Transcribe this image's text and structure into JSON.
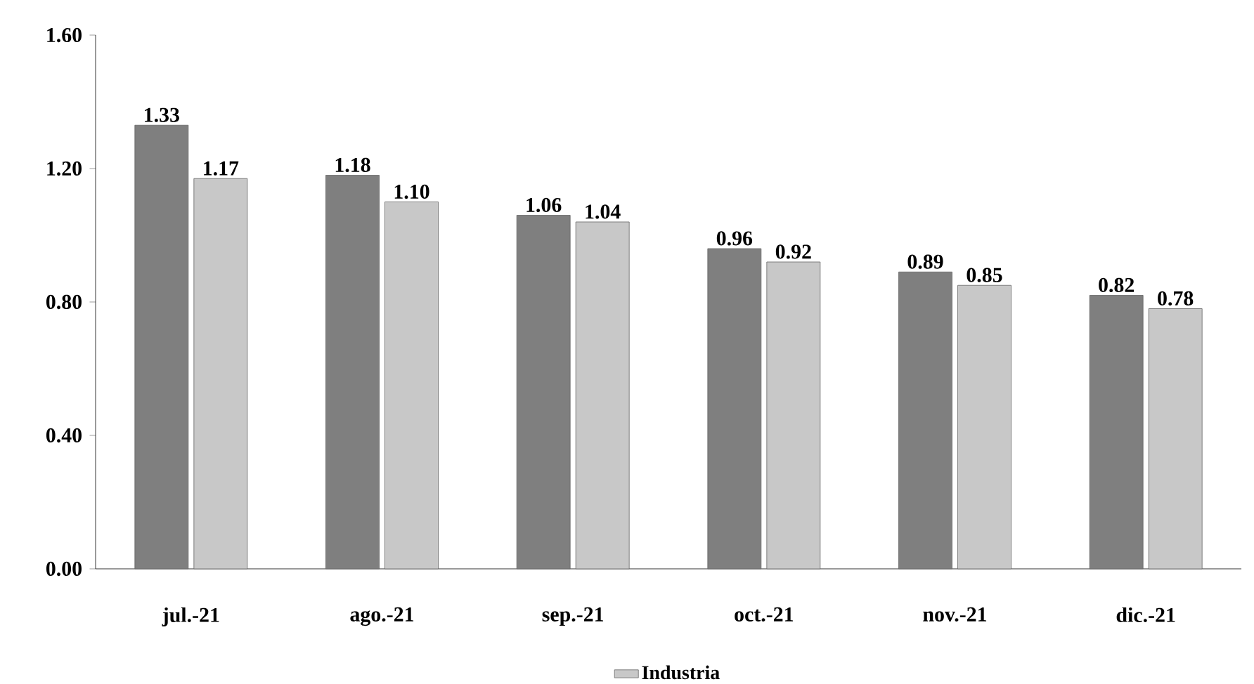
{
  "chart_data": {
    "type": "bar",
    "categories": [
      "jul.-21",
      "ago.-21",
      "sep.-21",
      "oct.-21",
      "nov.-21",
      "dic.-21"
    ],
    "series": [
      {
        "color": "#7f7f7f",
        "values": [
          1.33,
          1.18,
          1.06,
          0.96,
          0.89,
          0.82
        ],
        "value_labels": [
          "1.33",
          "1.18",
          "1.06",
          "0.96",
          "0.89",
          "0.82"
        ]
      },
      {
        "name": "Industria",
        "color": "#c8c8c8",
        "values": [
          1.17,
          1.1,
          1.04,
          0.92,
          0.85,
          0.78
        ],
        "value_labels": [
          "1.17",
          "1.10",
          "1.04",
          "0.92",
          "0.85",
          "0.78"
        ]
      }
    ],
    "ylim": [
      0,
      1.6
    ],
    "yticks": [
      {
        "value": 0,
        "label": "0.00"
      },
      {
        "value": 0.4,
        "label": "0.40"
      },
      {
        "value": 0.8,
        "label": "0.80"
      },
      {
        "value": 1.2,
        "label": "1.20"
      },
      {
        "value": 1.6,
        "label": "1.60"
      }
    ],
    "grid": false,
    "legend": "bottom"
  }
}
